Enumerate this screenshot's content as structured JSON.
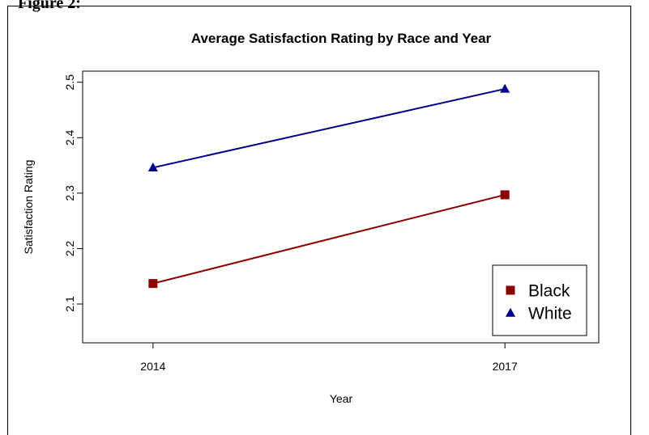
{
  "page": {
    "figure_label": "Figure 2:"
  },
  "chart_data": {
    "type": "line",
    "title": "Average Satisfaction Rating by Race and Year",
    "xlabel": "Year",
    "ylabel": "Satisfaction Rating",
    "categories": [
      "2014",
      "2017"
    ],
    "ylim": [
      2.03,
      2.52
    ],
    "xlim": [
      2013.4,
      2017.8
    ],
    "yticks": [
      "2.1",
      "2.2",
      "2.3",
      "2.4",
      "2.5"
    ],
    "legend_position": "bottom-right",
    "grid": false,
    "series": [
      {
        "name": "Black",
        "x": [
          2014,
          2017
        ],
        "values": [
          2.137,
          2.297
        ],
        "color": "#8b0000",
        "marker": "square"
      },
      {
        "name": "White",
        "x": [
          2014,
          2017
        ],
        "values": [
          2.346,
          2.488
        ],
        "color": "#00008b",
        "marker": "triangle"
      }
    ]
  }
}
